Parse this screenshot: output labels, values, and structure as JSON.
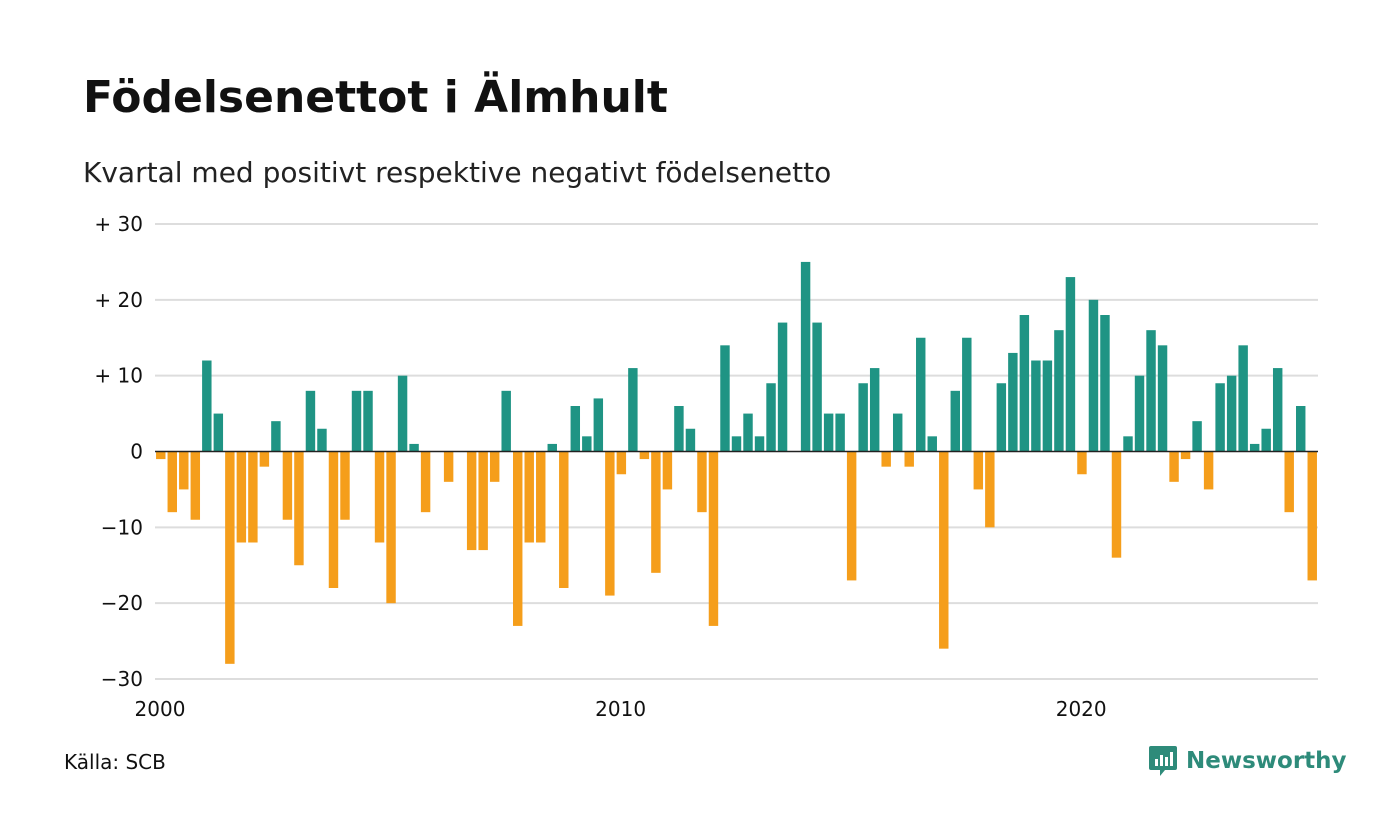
{
  "title": "Födelsenettot i Älmhult",
  "subtitle": "Kvartal med positivt respektive negativt födelsenetto",
  "source": "Källa: SCB",
  "brand": {
    "name": "Newsworthy",
    "icon": "newsworthy-logo-icon"
  },
  "colors": {
    "positive": "#1f9484",
    "negative": "#f59e1b",
    "grid": "#dddddd",
    "brand": "#2e8b7a"
  },
  "chart_data": {
    "type": "bar",
    "grid": true,
    "ylim": [
      -30,
      30
    ],
    "y_ticks": [
      {
        "value": 30,
        "label": "+ 30"
      },
      {
        "value": 20,
        "label": "+ 20"
      },
      {
        "value": 10,
        "label": "+ 10"
      },
      {
        "value": 0,
        "label": "0"
      },
      {
        "value": -10,
        "label": "−10"
      },
      {
        "value": -20,
        "label": "−20"
      },
      {
        "value": -30,
        "label": "−30"
      }
    ],
    "x_ticks": [
      "2000",
      "2010",
      "2020"
    ],
    "start_year": 2000,
    "values": [
      -1,
      -8,
      -5,
      -9,
      12,
      5,
      -28,
      -12,
      -12,
      -2,
      4,
      -9,
      -15,
      8,
      3,
      -18,
      -9,
      8,
      8,
      -12,
      -20,
      10,
      1,
      -8,
      0,
      -4,
      0,
      -13,
      -13,
      -4,
      8,
      -23,
      -12,
      -12,
      1,
      -18,
      6,
      2,
      7,
      -19,
      -3,
      11,
      -1,
      -16,
      -5,
      6,
      3,
      -8,
      -23,
      14,
      2,
      5,
      2,
      9,
      17,
      0,
      25,
      17,
      5,
      5,
      -17,
      9,
      11,
      -2,
      5,
      -2,
      15,
      2,
      -26,
      8,
      15,
      -5,
      -10,
      9,
      13,
      18,
      12,
      12,
      16,
      23,
      -3,
      20,
      18,
      -14,
      2,
      10,
      16,
      14,
      -4,
      -1,
      4,
      -5,
      9,
      10,
      14,
      1,
      3,
      11,
      -8,
      6,
      -17
    ]
  }
}
